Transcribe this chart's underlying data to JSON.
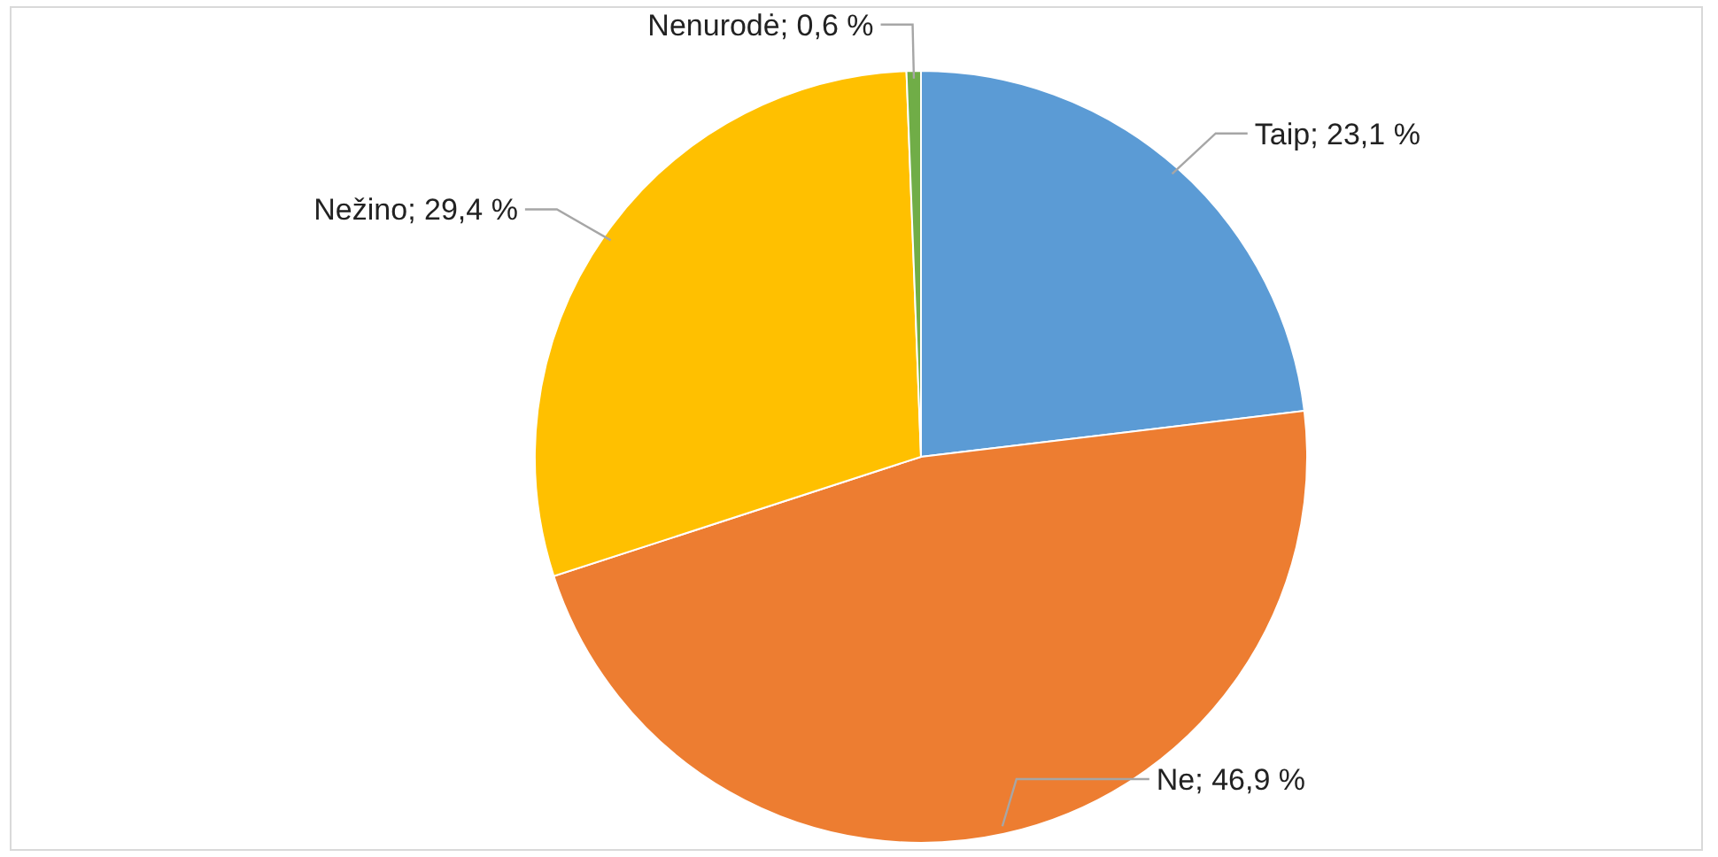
{
  "chart_data": {
    "type": "pie",
    "categories": [
      "Taip",
      "Ne",
      "Nežino",
      "Nenurodė"
    ],
    "values": [
      23.1,
      46.9,
      29.4,
      0.6
    ],
    "colors": [
      "#5b9bd5",
      "#ed7d31",
      "#ffc000",
      "#70ad47"
    ],
    "value_labels": [
      "; 23,1 %",
      "; 46,9 %",
      "; 29,4 %",
      "; 0,6 %"
    ]
  }
}
